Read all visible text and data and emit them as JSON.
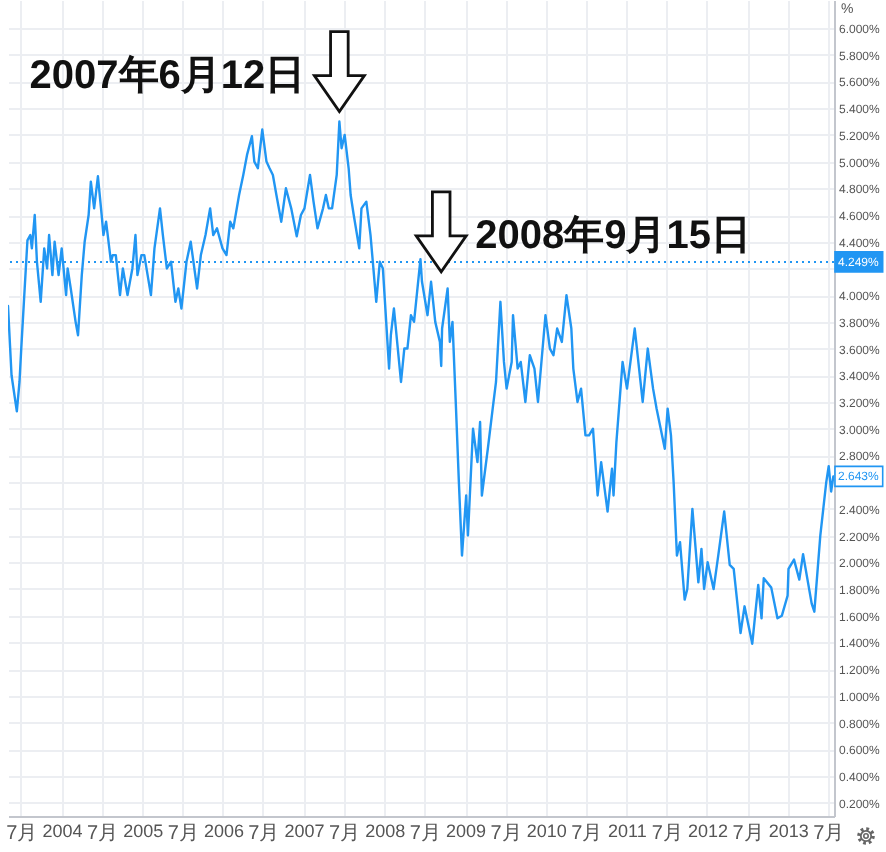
{
  "chart_data": {
    "type": "line",
    "ylabel": "%",
    "x": [
      "2003-05-04",
      "2003-05-20",
      "2003-06-13",
      "2003-06-25",
      "2003-07-03",
      "2003-07-15",
      "2003-07-31",
      "2003-08-13",
      "2003-08-20",
      "2003-09-02",
      "2003-09-12",
      "2003-09-29",
      "2003-10-15",
      "2003-10-28",
      "2003-11-06",
      "2003-11-21",
      "2003-12-01",
      "2003-12-19",
      "2004-01-02",
      "2004-01-22",
      "2004-01-29",
      "2004-02-12",
      "2004-03-05",
      "2004-03-16",
      "2004-04-02",
      "2004-04-15",
      "2004-05-03",
      "2004-05-13",
      "2004-05-28",
      "2004-06-14",
      "2004-07-01",
      "2004-07-09",
      "2004-07-21",
      "2004-08-12",
      "2004-08-20",
      "2004-09-03",
      "2004-09-22",
      "2004-10-05",
      "2004-10-26",
      "2004-11-17",
      "2004-12-01",
      "2004-12-10",
      "2004-12-28",
      "2005-01-10",
      "2005-01-25",
      "2005-02-09",
      "2005-02-25",
      "2005-03-22",
      "2005-04-04",
      "2005-04-22",
      "2005-05-11",
      "2005-05-31",
      "2005-06-13",
      "2005-06-27",
      "2005-07-20",
      "2005-08-08",
      "2005-09-06",
      "2005-09-23",
      "2005-10-14",
      "2005-11-04",
      "2005-11-18",
      "2005-12-05",
      "2005-12-30",
      "2006-01-17",
      "2006-02-03",
      "2006-02-17",
      "2006-03-15",
      "2006-04-03",
      "2006-04-20",
      "2006-05-12",
      "2006-05-23",
      "2006-06-08",
      "2006-06-28",
      "2006-07-17",
      "2006-07-31",
      "2006-08-15",
      "2006-08-31",
      "2006-09-22",
      "2006-10-13",
      "2006-11-06",
      "2006-12-01",
      "2006-12-20",
      "2007-01-05",
      "2007-01-30",
      "2007-02-15",
      "2007-03-05",
      "2007-03-30",
      "2007-04-12",
      "2007-04-25",
      "2007-05-10",
      "2007-05-31",
      "2007-06-12",
      "2007-06-22",
      "2007-07-06",
      "2007-07-24",
      "2007-08-02",
      "2007-08-16",
      "2007-09-10",
      "2007-09-20",
      "2007-10-12",
      "2007-10-31",
      "2007-11-26",
      "2007-12-12",
      "2007-12-26",
      "2008-01-23",
      "2008-01-31",
      "2008-02-14",
      "2008-03-17",
      "2008-04-01",
      "2008-04-15",
      "2008-05-01",
      "2008-05-15",
      "2008-06-13",
      "2008-06-20",
      "2008-07-15",
      "2008-07-31",
      "2008-08-19",
      "2008-09-09",
      "2008-09-15",
      "2008-09-19",
      "2008-10-14",
      "2008-10-24",
      "2008-11-05",
      "2008-11-21",
      "2008-12-04",
      "2008-12-18",
      "2009-01-06",
      "2009-01-14",
      "2009-02-06",
      "2009-02-26",
      "2009-03-10",
      "2009-03-18",
      "2009-04-14",
      "2009-05-06",
      "2009-05-21",
      "2009-06-10",
      "2009-06-26",
      "2009-07-08",
      "2009-07-31",
      "2009-08-06",
      "2009-08-27",
      "2009-09-10",
      "2009-10-01",
      "2009-10-21",
      "2009-11-11",
      "2009-11-27",
      "2009-12-31",
      "2010-01-20",
      "2010-02-05",
      "2010-02-22",
      "2010-03-15",
      "2010-04-05",
      "2010-04-27",
      "2010-05-06",
      "2010-05-25",
      "2010-06-10",
      "2010-06-30",
      "2010-07-16",
      "2010-08-03",
      "2010-08-24",
      "2010-09-09",
      "2010-10-08",
      "2010-10-28",
      "2010-11-04",
      "2010-11-17",
      "2010-12-15",
      "2011-01-04",
      "2011-02-08",
      "2011-03-16",
      "2011-04-08",
      "2011-05-02",
      "2011-05-18",
      "2011-06-24",
      "2011-07-07",
      "2011-07-22",
      "2011-08-03",
      "2011-08-18",
      "2011-09-01",
      "2011-09-22",
      "2011-10-04",
      "2011-10-27",
      "2011-11-23",
      "2011-12-07",
      "2011-12-19",
      "2012-01-04",
      "2012-01-31",
      "2012-02-21",
      "2012-03-19",
      "2012-04-13",
      "2012-05-01",
      "2012-06-01",
      "2012-06-19",
      "2012-07-24",
      "2012-08-20",
      "2012-09-04",
      "2012-09-14",
      "2012-10-18",
      "2012-11-15",
      "2012-12-05",
      "2012-12-31",
      "2013-01-04",
      "2013-01-29",
      "2013-02-22",
      "2013-03-11",
      "2013-04-19",
      "2013-05-01",
      "2013-05-28",
      "2013-06-24",
      "2013-07-05",
      "2013-07-16",
      "2013-07-26"
    ],
    "series": [
      {
        "color": "#2196f3",
        "values": [
          3.92,
          3.4,
          3.13,
          3.35,
          3.6,
          3.95,
          4.41,
          4.45,
          4.35,
          4.6,
          4.25,
          3.95,
          4.35,
          4.2,
          4.45,
          4.15,
          4.4,
          4.15,
          4.35,
          4.0,
          4.2,
          4.05,
          3.8,
          3.7,
          4.15,
          4.4,
          4.6,
          4.85,
          4.65,
          4.89,
          4.6,
          4.45,
          4.55,
          4.25,
          4.3,
          4.3,
          4.0,
          4.2,
          4.0,
          4.2,
          4.45,
          4.15,
          4.3,
          4.3,
          4.15,
          4.0,
          4.35,
          4.65,
          4.45,
          4.2,
          4.25,
          3.95,
          4.05,
          3.9,
          4.25,
          4.4,
          4.05,
          4.3,
          4.45,
          4.65,
          4.45,
          4.5,
          4.35,
          4.3,
          4.55,
          4.5,
          4.75,
          4.9,
          5.05,
          5.19,
          5.0,
          4.95,
          5.24,
          5.0,
          4.95,
          4.9,
          4.75,
          4.55,
          4.8,
          4.65,
          4.44,
          4.6,
          4.65,
          4.9,
          4.7,
          4.5,
          4.65,
          4.75,
          4.65,
          4.65,
          4.9,
          5.3,
          5.1,
          5.2,
          4.95,
          4.75,
          4.6,
          4.35,
          4.65,
          4.7,
          4.45,
          3.95,
          4.25,
          4.2,
          3.45,
          3.7,
          3.9,
          3.35,
          3.6,
          3.6,
          3.85,
          3.8,
          4.27,
          4.1,
          3.85,
          4.1,
          3.8,
          3.65,
          3.47,
          3.75,
          4.05,
          3.65,
          3.8,
          3.15,
          2.6,
          2.05,
          2.5,
          2.2,
          3.0,
          2.75,
          3.05,
          2.5,
          2.85,
          3.15,
          3.35,
          3.95,
          3.5,
          3.3,
          3.5,
          3.85,
          3.45,
          3.5,
          3.2,
          3.55,
          3.45,
          3.2,
          3.85,
          3.6,
          3.55,
          3.75,
          3.65,
          4.0,
          3.75,
          3.45,
          3.2,
          3.3,
          2.95,
          2.95,
          3.0,
          2.5,
          2.75,
          2.38,
          2.7,
          2.5,
          2.9,
          3.5,
          3.3,
          3.75,
          3.2,
          3.6,
          3.3,
          3.15,
          2.85,
          3.15,
          2.95,
          2.6,
          2.05,
          2.15,
          1.72,
          1.8,
          2.4,
          1.85,
          2.1,
          1.8,
          2.0,
          1.8,
          2.05,
          2.38,
          1.98,
          1.95,
          1.47,
          1.67,
          1.39,
          1.83,
          1.58,
          1.88,
          1.81,
          1.58,
          1.6,
          1.75,
          1.95,
          2.02,
          1.87,
          2.06,
          1.69,
          1.63,
          2.2,
          2.6,
          2.72,
          2.53,
          2.643
        ],
        "value_labels": [
          null,
          null,
          null,
          null,
          null,
          null,
          null,
          null,
          null,
          null,
          null,
          null,
          null,
          null,
          null,
          null,
          null,
          null,
          null,
          null,
          null,
          null,
          null,
          null,
          null,
          null,
          null,
          null,
          null,
          null,
          null,
          null,
          null,
          null,
          null,
          null,
          null,
          null,
          null,
          null,
          null,
          null,
          null,
          null,
          null,
          null,
          null,
          null,
          null,
          null,
          null,
          null,
          null,
          null,
          null,
          null,
          null,
          null,
          null,
          null,
          null,
          null,
          null,
          null,
          null,
          null,
          null,
          null,
          null,
          null,
          null,
          null,
          null,
          null,
          null,
          null,
          null,
          null,
          null,
          null,
          null,
          null,
          null,
          null,
          null,
          null,
          null,
          null,
          null,
          null,
          null,
          null,
          null,
          null,
          null,
          null,
          null,
          null,
          null,
          null,
          null,
          null,
          null,
          null,
          null,
          null,
          null,
          null,
          null,
          null,
          null,
          null,
          null,
          null,
          null,
          null,
          null,
          null,
          null,
          null,
          null,
          null,
          null,
          null,
          null,
          null,
          null,
          null,
          null,
          null,
          null,
          null,
          null,
          null,
          null,
          null,
          null,
          null,
          null,
          null,
          null,
          null,
          null,
          null,
          null,
          null,
          null,
          null,
          null,
          null,
          null,
          null,
          null,
          null,
          null,
          null,
          null,
          null,
          null,
          null,
          null,
          null,
          null,
          null,
          null,
          null,
          null,
          null,
          null,
          null,
          null,
          null,
          null,
          null,
          null,
          null,
          null,
          null,
          null,
          null,
          null,
          null,
          null,
          null,
          null,
          null,
          null,
          null,
          null,
          null,
          null,
          null,
          null,
          null,
          null,
          null,
          null,
          null,
          null,
          null,
          null,
          null,
          null,
          null,
          null,
          null,
          null,
          null,
          null,
          null,
          "2.643%"
        ]
      }
    ],
    "xlim": [
      "2003-05-04",
      "2013-07-29"
    ],
    "ylim": [
      0.1,
      6.21
    ],
    "xticks": [
      {
        "value": "2003-07",
        "label": "7月"
      },
      {
        "value": "2004",
        "label": "2004"
      },
      {
        "value": "2004-07",
        "label": "7月"
      },
      {
        "value": "2005",
        "label": "2005"
      },
      {
        "value": "2005-07",
        "label": "7月"
      },
      {
        "value": "2006",
        "label": "2006"
      },
      {
        "value": "2006-07",
        "label": "7月"
      },
      {
        "value": "2007",
        "label": "2007"
      },
      {
        "value": "2007-07",
        "label": "7月"
      },
      {
        "value": "2008",
        "label": "2008"
      },
      {
        "value": "2008-07",
        "label": "7月"
      },
      {
        "value": "2009",
        "label": "2009"
      },
      {
        "value": "2009-07",
        "label": "7月"
      },
      {
        "value": "2010",
        "label": "2010"
      },
      {
        "value": "2010-07",
        "label": "7月"
      },
      {
        "value": "2011",
        "label": "2011"
      },
      {
        "value": "2011-07",
        "label": "7月"
      },
      {
        "value": "2012",
        "label": "2012"
      },
      {
        "value": "2012-07",
        "label": "7月"
      },
      {
        "value": "2013",
        "label": "2013"
      },
      {
        "value": "2013-07",
        "label": "7月"
      }
    ],
    "yticks": [
      {
        "value": 0.2,
        "label": "0.200%"
      },
      {
        "value": 0.4,
        "label": "0.400%"
      },
      {
        "value": 0.6,
        "label": "0.600%"
      },
      {
        "value": 0.8,
        "label": "0.800%"
      },
      {
        "value": 1,
        "label": "1.000%"
      },
      {
        "value": 1.2,
        "label": "1.200%"
      },
      {
        "value": 1.4,
        "label": "1.400%"
      },
      {
        "value": 1.6,
        "label": "1.600%"
      },
      {
        "value": 1.8,
        "label": "1.800%"
      },
      {
        "value": 2,
        "label": "2.000%"
      },
      {
        "value": 2.2,
        "label": "2.200%"
      },
      {
        "value": 2.4,
        "label": "2.400%"
      },
      {
        "value": 2.6,
        "label": null
      },
      {
        "value": 2.8,
        "label": "2.800%"
      },
      {
        "value": 3,
        "label": "3.000%"
      },
      {
        "value": 3.2,
        "label": "3.200%"
      },
      {
        "value": 3.4,
        "label": "3.400%"
      },
      {
        "value": 3.6,
        "label": "3.600%"
      },
      {
        "value": 3.8,
        "label": "3.800%"
      },
      {
        "value": 4,
        "label": "4.000%"
      },
      {
        "value": 4.2,
        "label": null
      },
      {
        "value": 4.4,
        "label": "4.400%"
      },
      {
        "value": 4.6,
        "label": "4.600%"
      },
      {
        "value": 4.8,
        "label": "4.800%"
      },
      {
        "value": 5,
        "label": "5.000%"
      },
      {
        "value": 5.2,
        "label": "5.200%"
      },
      {
        "value": 5.4,
        "label": "5.400%"
      },
      {
        "value": 5.6,
        "label": "5.600%"
      },
      {
        "value": 5.8,
        "label": "5.800%"
      },
      {
        "value": 6,
        "label": "6.000%"
      }
    ],
    "grid": true,
    "ref_lines": [
      {
        "axis": "y",
        "value": 4.249,
        "label": "4.249%",
        "color": "#2196f3",
        "line_style": "dotted"
      }
    ],
    "annotations": [
      {
        "text": "2007年6月12日",
        "x": "2007-06-12",
        "y": 5.3
      },
      {
        "text": "2008年9月15日",
        "x": "2008-09-15",
        "y": 4.1
      }
    ]
  }
}
